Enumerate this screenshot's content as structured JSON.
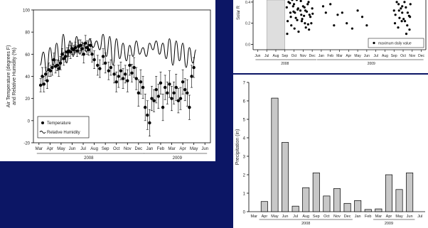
{
  "chart_data": [
    {
      "type": "scatter",
      "ylabel": "Air Temperature (degrees F)\nand Relative Humidity (%)",
      "ylim": [
        -20,
        100
      ],
      "yticks": [
        -20,
        0,
        20,
        40,
        60,
        80,
        100
      ],
      "month_labels": [
        "Mar",
        "Apr",
        "May",
        "Jun",
        "Jul",
        "Aug",
        "Sep",
        "Oct",
        "Nov",
        "Dec",
        "Jan",
        "Feb",
        "Mar",
        "Apr",
        "May",
        "Jun"
      ],
      "years": [
        "2008",
        "2009"
      ],
      "legend": [
        "Temperature",
        "Relative Humidity"
      ],
      "legend_position": "bottom-left",
      "series": [
        {
          "name": "Temperature",
          "kind": "points-with-error-bars",
          "x": [
            1.15,
            1.3,
            1.45,
            1.6,
            1.75,
            1.9,
            2.05,
            2.2,
            2.35,
            2.5,
            2.65,
            2.8,
            2.95,
            3.1,
            3.25,
            3.4,
            3.55,
            3.7,
            3.85,
            4.0,
            4.15,
            4.3,
            4.45,
            4.6,
            4.75,
            4.9,
            5.05,
            5.2,
            5.35,
            5.5,
            5.65,
            5.8,
            6.0,
            6.3,
            6.5,
            6.8,
            7.0,
            7.3,
            7.5,
            7.8,
            8.0,
            8.2,
            8.4,
            8.6,
            8.8,
            9.0,
            9.2,
            9.4,
            9.6,
            9.8,
            10.0,
            10.2,
            10.4,
            10.6,
            10.8,
            11.0,
            11.2,
            11.4,
            11.6,
            11.8,
            12.0,
            12.2,
            12.4,
            12.6,
            12.8,
            13.0,
            13.2,
            13.4,
            13.6,
            13.8,
            14.0,
            14.2,
            14.4,
            14.6,
            14.8,
            15.0
          ],
          "y": [
            32,
            40,
            33,
            42,
            36,
            46,
            45,
            48,
            55,
            49,
            50,
            47,
            52,
            60,
            56,
            58,
            62,
            63,
            62,
            65,
            64,
            66,
            63,
            67,
            68,
            65,
            60,
            70,
            66,
            64,
            68,
            60,
            55,
            50,
            47,
            58,
            52,
            45,
            48,
            42,
            35,
            40,
            45,
            38,
            42,
            36,
            50,
            43,
            48,
            38,
            25,
            35,
            30,
            12,
            5,
            -2,
            20,
            18,
            28,
            22,
            34,
            12,
            30,
            25,
            33,
            20,
            25,
            30,
            18,
            20,
            35,
            28,
            25,
            12,
            40,
            48
          ],
          "err": [
            6,
            8,
            7,
            6,
            7,
            6,
            5,
            7,
            6,
            6,
            5,
            7,
            6,
            5,
            6,
            5,
            4,
            5,
            6,
            5,
            4,
            5,
            5,
            6,
            5,
            6,
            8,
            7,
            6,
            5,
            6,
            7,
            8,
            9,
            8,
            7,
            9,
            8,
            7,
            8,
            9,
            10,
            8,
            9,
            8,
            10,
            9,
            8,
            9,
            10,
            12,
            11,
            10,
            12,
            13,
            12,
            11,
            10,
            12,
            11,
            10,
            12,
            11,
            10,
            12,
            11,
            10,
            12,
            11,
            10,
            11,
            10,
            12,
            11,
            10,
            9
          ]
        },
        {
          "name": "Relative Humidity",
          "kind": "line",
          "x": [
            1.1,
            1.4,
            1.7,
            2.0,
            2.3,
            2.6,
            2.9,
            3.2,
            3.5,
            3.8,
            4.1,
            4.4,
            4.7,
            5.0,
            5.3,
            5.6,
            5.9,
            6.2,
            6.5,
            6.8,
            7.1,
            7.4,
            7.7,
            8.0,
            8.3,
            8.6,
            8.9,
            9.2,
            9.5,
            9.8,
            10.1,
            10.4,
            10.7,
            11.0,
            11.3,
            11.6,
            11.9,
            12.2,
            12.5,
            12.8,
            13.1,
            13.4,
            13.7,
            14.0,
            14.3,
            14.6,
            14.9,
            15.2
          ],
          "y": [
            50,
            62,
            44,
            66,
            50,
            70,
            48,
            78,
            52,
            72,
            58,
            76,
            60,
            70,
            62,
            74,
            66,
            72,
            64,
            78,
            58,
            76,
            50,
            74,
            56,
            70,
            54,
            68,
            58,
            72,
            60,
            66,
            58,
            70,
            64,
            72,
            60,
            70,
            56,
            74,
            50,
            72,
            54,
            70,
            48,
            66,
            52,
            64
          ]
        }
      ]
    },
    {
      "type": "scatter",
      "ylabel": "Solar R",
      "yticks": [
        0.0,
        0.2,
        0.4
      ],
      "ylim": [
        -0.05,
        0.5
      ],
      "month_labels": [
        "Jun",
        "Jul",
        "Aug",
        "Sep",
        "Oct",
        "Nov",
        "Dec",
        "Jan",
        "Feb",
        "Mar",
        "Apr",
        "May",
        "Jun",
        "Jul",
        "Aug",
        "Sep",
        "Oct",
        "Nov",
        "Dec"
      ],
      "years": [
        "2008",
        "2009"
      ],
      "legend": [
        "maximum daily value"
      ],
      "legend_position": "bottom-right",
      "shaded_region": [
        2.0,
        4.0
      ],
      "series": [
        {
          "name": "maximum daily value",
          "x": [
            4.2,
            4.4,
            4.6,
            4.8,
            5.0,
            5.2,
            5.4,
            5.6,
            5.8,
            6.0,
            6.2,
            6.4,
            6.6,
            6.8,
            7.0,
            4.3,
            4.7,
            5.1,
            5.5,
            5.9,
            6.3,
            6.7,
            4.5,
            4.9,
            5.3,
            5.7,
            6.1,
            6.5,
            6.9,
            4.25,
            4.65,
            5.05,
            5.45,
            5.85,
            6.25,
            6.65,
            7.05,
            4.55,
            4.95,
            5.35,
            5.75,
            6.15,
            6.55,
            8.2,
            8.5,
            9.0,
            9.4,
            9.8,
            10.3,
            10.8,
            11.4,
            12.0,
            12.5,
            13.0,
            16.0,
            16.3,
            16.6,
            16.9,
            17.2,
            17.5,
            17.8,
            16.15,
            16.45,
            16.75,
            17.05,
            17.35,
            17.65,
            16.1,
            16.5,
            16.9,
            17.3,
            17.7,
            16.25,
            16.55,
            16.85,
            17.15,
            17.45,
            17.75
          ],
          "y": [
            0.35,
            0.4,
            0.3,
            0.42,
            0.38,
            0.25,
            0.33,
            0.44,
            0.28,
            0.36,
            0.2,
            0.31,
            0.4,
            0.26,
            0.34,
            0.22,
            0.18,
            0.3,
            0.12,
            0.24,
            0.16,
            0.28,
            0.44,
            0.36,
            0.42,
            0.32,
            0.27,
            0.38,
            0.2,
            0.1,
            0.26,
            0.15,
            0.34,
            0.22,
            0.32,
            0.14,
            0.29,
            0.39,
            0.31,
            0.23,
            0.41,
            0.35,
            0.19,
            0.36,
            0.3,
            0.38,
            0.18,
            0.28,
            0.3,
            0.2,
            0.15,
            0.32,
            0.26,
            0.18,
            0.32,
            0.4,
            0.25,
            0.36,
            0.22,
            0.3,
            0.38,
            0.28,
            0.16,
            0.34,
            0.24,
            0.1,
            0.27,
            0.2,
            0.38,
            0.3,
            0.35,
            0.14,
            0.44,
            0.32,
            0.22,
            0.4,
            0.18,
            0.26
          ]
        }
      ]
    },
    {
      "type": "bar",
      "ylabel": "Precipitation (in)",
      "ylim": [
        0,
        7
      ],
      "yticks": [
        0,
        1,
        2,
        3,
        4,
        5,
        6,
        7
      ],
      "categories": [
        "Mar",
        "Apr",
        "May",
        "Jun",
        "Jul",
        "Aug",
        "Sep",
        "Oct",
        "Nov",
        "Dec",
        "Jan",
        "Feb",
        "Mar",
        "Apr",
        "May",
        "Jun",
        "Jul"
      ],
      "values": [
        0,
        0.55,
        6.15,
        3.75,
        0.3,
        1.3,
        2.1,
        0.85,
        1.25,
        0.45,
        0.6,
        0.12,
        0.15,
        2.0,
        1.2,
        2.1,
        0
      ],
      "years": [
        "2008",
        "2009"
      ]
    }
  ]
}
